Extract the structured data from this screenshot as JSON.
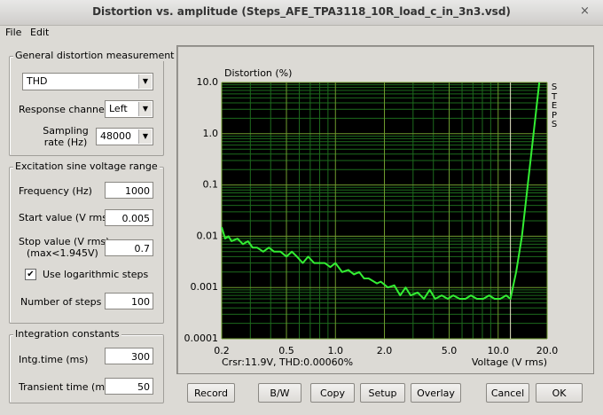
{
  "window": {
    "title": "Distortion vs. amplitude (Steps_AFE_TPA3118_10R_load_c_in_3n3.vsd)",
    "close": "×"
  },
  "menu": [
    "File",
    "Edit"
  ],
  "general": {
    "legend": "General distortion measurement",
    "mode": "THD",
    "channel_label": "Response channel",
    "channel": "Left",
    "rate_label": "Sampling rate (Hz)",
    "rate": "48000"
  },
  "excitation": {
    "legend": "Excitation sine voltage range",
    "fields": [
      {
        "label": "Frequency (Hz)",
        "value": "1000"
      },
      {
        "label": "Start value (V rms)",
        "value": "0.005"
      },
      {
        "label": "Stop value (V rms)",
        "sublabel": "(max<1.945V)",
        "value": "0.7"
      }
    ],
    "log_steps": "Use logarithmic steps",
    "steps_label": "Number of steps",
    "steps": "100"
  },
  "integration": {
    "legend": "Integration constants",
    "fields": [
      {
        "label": "Intg.time (ms)",
        "value": "300"
      },
      {
        "label": "Transient time (ms)",
        "value": "50"
      }
    ]
  },
  "buttons": [
    "Record",
    "B/W",
    "Copy",
    "Setup",
    "Overlay",
    "Cancel",
    "OK"
  ],
  "chart_data": {
    "type": "line",
    "y_label": "Distortion (%)",
    "x_label": "Voltage (V rms)",
    "annotation": "Crsr:11.9V, THD:0.00060%",
    "side_label": "STEPS",
    "x": [
      0.2,
      0.21,
      0.22,
      0.23,
      0.25,
      0.27,
      0.29,
      0.31,
      0.33,
      0.36,
      0.39,
      0.42,
      0.46,
      0.5,
      0.54,
      0.58,
      0.63,
      0.68,
      0.74,
      0.8,
      0.86,
      0.93,
      1.0,
      1.1,
      1.2,
      1.3,
      1.4,
      1.5,
      1.6,
      1.8,
      1.9,
      2.1,
      2.3,
      2.5,
      2.7,
      2.9,
      3.2,
      3.5,
      3.8,
      4.1,
      4.5,
      4.9,
      5.3,
      5.8,
      6.3,
      6.8,
      7.4,
      8.1,
      8.8,
      9.5,
      10.3,
      11.2,
      11.9,
      12.9,
      14,
      15.2,
      16.5,
      17.9
    ],
    "values": [
      0.015,
      0.009,
      0.01,
      0.008,
      0.009,
      0.007,
      0.008,
      0.006,
      0.006,
      0.005,
      0.006,
      0.005,
      0.005,
      0.004,
      0.005,
      0.004,
      0.003,
      0.004,
      0.003,
      0.003,
      0.003,
      0.0025,
      0.003,
      0.002,
      0.0022,
      0.0018,
      0.002,
      0.0015,
      0.0015,
      0.0012,
      0.0013,
      0.001,
      0.0011,
      0.0007,
      0.001,
      0.0007,
      0.0008,
      0.0006,
      0.0009,
      0.0006,
      0.0007,
      0.0006,
      0.0007,
      0.0006,
      0.0006,
      0.0007,
      0.0006,
      0.0006,
      0.0007,
      0.0006,
      0.0006,
      0.0007,
      0.0006,
      0.002,
      0.01,
      0.1,
      1,
      10
    ],
    "color": "#33ee33",
    "cursor_x": 11.9,
    "cursor_color": "#e8e8c8",
    "xscale": "log",
    "yscale": "log",
    "grid": true,
    "grid_color": "#6e9a2e",
    "minor_grid_color": "#1d6a1d",
    "background": "#000000",
    "xlim": [
      0.2,
      20
    ],
    "ylim": [
      0.0001,
      10
    ],
    "xticks": [
      0.2,
      0.5,
      {
        "value": 1,
        "label": "1.0"
      },
      {
        "value": 2,
        "label": "2.0"
      },
      {
        "value": 5,
        "label": "5.0"
      },
      {
        "value": 10,
        "label": "10.0"
      },
      {
        "value": 20,
        "label": "20.0"
      }
    ],
    "yticks": [
      0.0001,
      0.001,
      0.01,
      0.1,
      {
        "value": 1,
        "label": "1.0"
      },
      {
        "value": 10,
        "label": "10.0"
      }
    ]
  }
}
